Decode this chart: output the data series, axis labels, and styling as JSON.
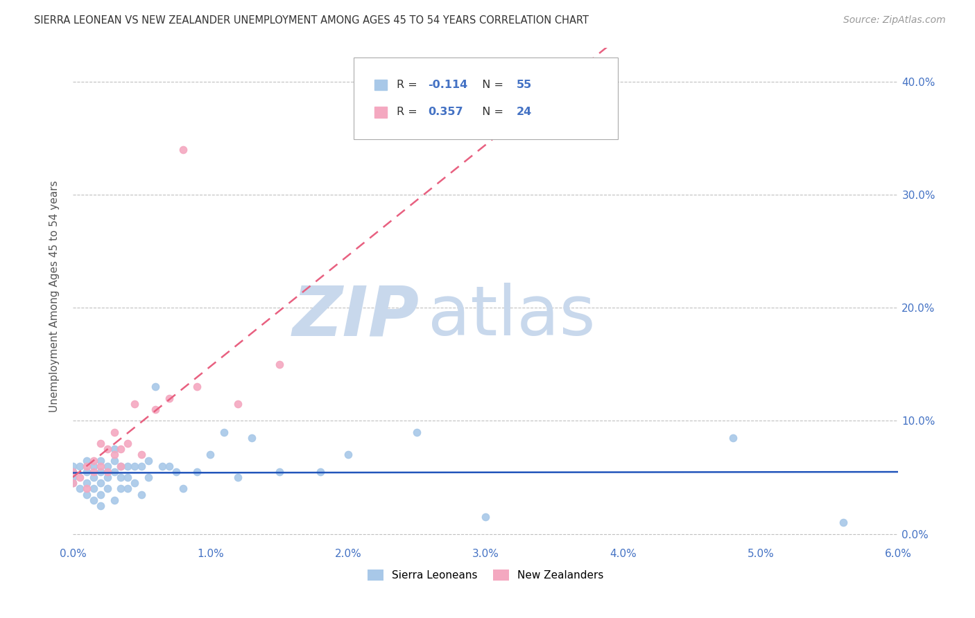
{
  "title": "SIERRA LEONEAN VS NEW ZEALANDER UNEMPLOYMENT AMONG AGES 45 TO 54 YEARS CORRELATION CHART",
  "source": "Source: ZipAtlas.com",
  "ylabel": "Unemployment Among Ages 45 to 54 years",
  "xlim": [
    0.0,
    0.06
  ],
  "ylim": [
    -0.01,
    0.43
  ],
  "xticks": [
    0.0,
    0.01,
    0.02,
    0.03,
    0.04,
    0.05,
    0.06
  ],
  "xtick_labels": [
    "0.0%",
    "1.0%",
    "2.0%",
    "3.0%",
    "4.0%",
    "5.0%",
    "6.0%"
  ],
  "yticks": [
    0.0,
    0.1,
    0.2,
    0.3,
    0.4
  ],
  "ytick_labels": [
    "0.0%",
    "10.0%",
    "20.0%",
    "30.0%",
    "40.0%"
  ],
  "sierra_R": -0.114,
  "sierra_N": 55,
  "nz_R": 0.357,
  "nz_N": 24,
  "legend_label_sierra": "Sierra Leoneans",
  "legend_label_nz": "New Zealanders",
  "color_sierra": "#A8C8E8",
  "color_nz": "#F4A8C0",
  "color_sierra_line": "#2255BB",
  "color_nz_line": "#E86080",
  "sierra_x": [
    0.0,
    0.0,
    0.0,
    0.0,
    0.0005,
    0.0005,
    0.001,
    0.001,
    0.001,
    0.001,
    0.0015,
    0.0015,
    0.0015,
    0.0015,
    0.002,
    0.002,
    0.002,
    0.002,
    0.002,
    0.0025,
    0.0025,
    0.0025,
    0.003,
    0.003,
    0.003,
    0.003,
    0.0035,
    0.0035,
    0.0035,
    0.004,
    0.004,
    0.004,
    0.0045,
    0.0045,
    0.005,
    0.005,
    0.0055,
    0.0055,
    0.006,
    0.0065,
    0.007,
    0.0075,
    0.008,
    0.009,
    0.01,
    0.011,
    0.012,
    0.013,
    0.015,
    0.018,
    0.02,
    0.025,
    0.03,
    0.048,
    0.056
  ],
  "sierra_y": [
    0.06,
    0.055,
    0.05,
    0.045,
    0.06,
    0.04,
    0.065,
    0.055,
    0.045,
    0.035,
    0.06,
    0.05,
    0.04,
    0.03,
    0.065,
    0.055,
    0.045,
    0.035,
    0.025,
    0.06,
    0.05,
    0.04,
    0.075,
    0.065,
    0.055,
    0.03,
    0.06,
    0.05,
    0.04,
    0.06,
    0.05,
    0.04,
    0.06,
    0.045,
    0.06,
    0.035,
    0.065,
    0.05,
    0.13,
    0.06,
    0.06,
    0.055,
    0.04,
    0.055,
    0.07,
    0.09,
    0.05,
    0.085,
    0.055,
    0.055,
    0.07,
    0.09,
    0.015,
    0.085,
    0.01
  ],
  "nz_x": [
    0.0,
    0.0,
    0.0005,
    0.001,
    0.001,
    0.0015,
    0.0015,
    0.002,
    0.002,
    0.0025,
    0.0025,
    0.003,
    0.003,
    0.0035,
    0.0035,
    0.004,
    0.0045,
    0.005,
    0.006,
    0.007,
    0.008,
    0.009,
    0.012,
    0.015
  ],
  "nz_y": [
    0.055,
    0.045,
    0.05,
    0.06,
    0.04,
    0.065,
    0.055,
    0.08,
    0.06,
    0.075,
    0.055,
    0.09,
    0.07,
    0.075,
    0.06,
    0.08,
    0.115,
    0.07,
    0.11,
    0.12,
    0.34,
    0.13,
    0.115,
    0.15
  ]
}
